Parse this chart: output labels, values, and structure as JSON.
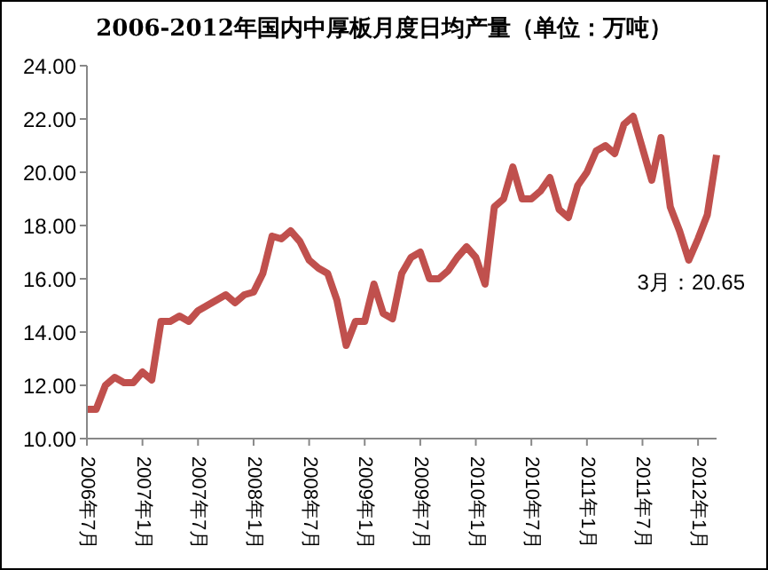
{
  "chart_data": {
    "type": "line",
    "title": "2006-2012年国内中厚板月度日均产量（单位：万吨）",
    "categories": [
      "2006年7月",
      null,
      null,
      null,
      null,
      null,
      "2007年1月",
      null,
      null,
      null,
      null,
      null,
      "2007年7月",
      null,
      null,
      null,
      null,
      null,
      "2008年1月",
      null,
      null,
      null,
      null,
      null,
      "2008年7月",
      null,
      null,
      null,
      null,
      null,
      "2009年1月",
      null,
      null,
      null,
      null,
      null,
      "2009年7月",
      null,
      null,
      null,
      null,
      null,
      "2010年1月",
      null,
      null,
      null,
      null,
      null,
      "2010年7月",
      null,
      null,
      null,
      null,
      null,
      "2011年1月",
      null,
      null,
      null,
      null,
      null,
      "2011年7月",
      null,
      null,
      null,
      null,
      null,
      "2012年1月",
      null,
      null
    ],
    "series": [
      {
        "color": "#c0504d",
        "values": [
          11.1,
          11.1,
          12.0,
          12.3,
          12.1,
          12.1,
          12.5,
          12.2,
          14.4,
          14.4,
          14.6,
          14.4,
          14.8,
          15.0,
          15.2,
          15.4,
          15.1,
          15.4,
          15.5,
          16.2,
          17.6,
          17.5,
          17.8,
          17.4,
          16.7,
          16.4,
          16.2,
          15.2,
          13.5,
          14.4,
          14.4,
          15.8,
          14.7,
          14.5,
          16.2,
          16.8,
          17.0,
          16.0,
          16.0,
          16.3,
          16.8,
          17.2,
          16.8,
          15.8,
          18.7,
          19.0,
          20.2,
          19.0,
          19.0,
          19.3,
          19.8,
          18.6,
          18.3,
          19.5,
          20.0,
          20.8,
          21.0,
          20.7,
          21.8,
          22.1,
          20.9,
          19.7,
          21.3,
          18.7,
          17.8,
          16.7,
          17.5,
          18.4,
          20.65
        ]
      }
    ],
    "ylim": [
      10,
      24
    ],
    "yticks": [
      {
        "value": 10,
        "label": "10.00"
      },
      {
        "value": 12,
        "label": "12.00"
      },
      {
        "value": 14,
        "label": "14.00"
      },
      {
        "value": 16,
        "label": "16.00"
      },
      {
        "value": 18,
        "label": "18.00"
      },
      {
        "value": 20,
        "label": "20.00"
      },
      {
        "value": 22,
        "label": "22.00"
      },
      {
        "value": 24,
        "label": "24.00"
      }
    ],
    "grid": false,
    "legend": false,
    "marker": "none",
    "line_style": "solid",
    "annotations": [
      "3月：20.65"
    ]
  }
}
